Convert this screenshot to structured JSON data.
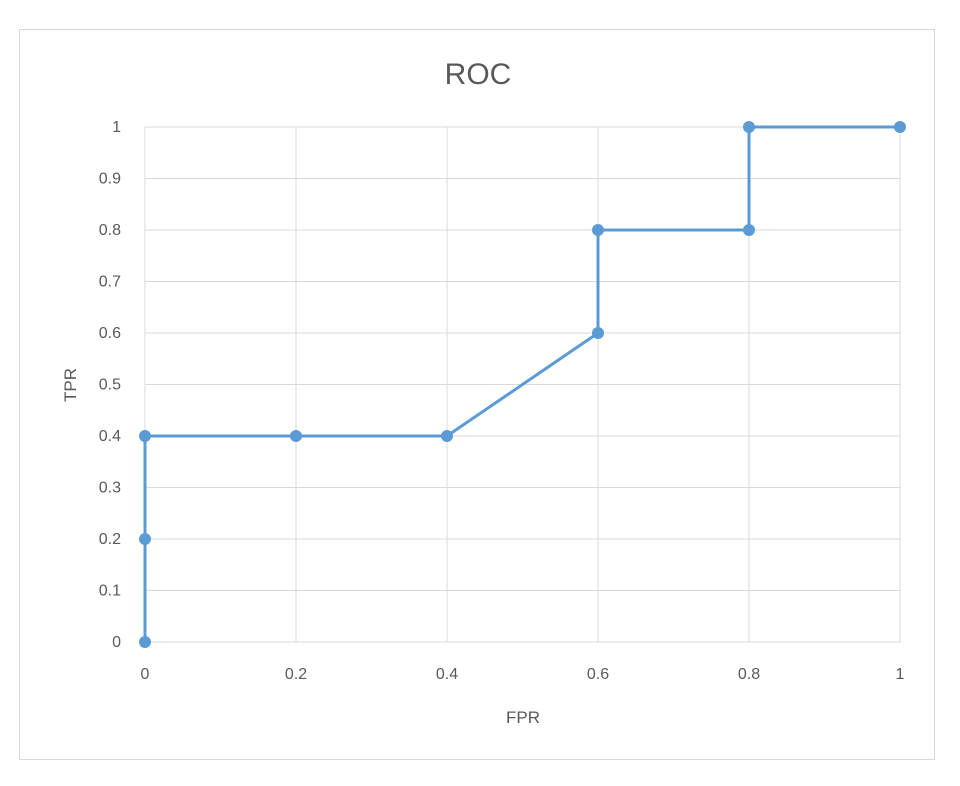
{
  "chart_data": {
    "type": "scatter",
    "title": "ROC",
    "xlabel": "FPR",
    "ylabel": "TPR",
    "xlim": [
      0,
      1
    ],
    "ylim": [
      0,
      1
    ],
    "xticks": [
      "0",
      "0.2",
      "0.4",
      "0.6",
      "0.8",
      "1"
    ],
    "yticks": [
      "0",
      "0.1",
      "0.2",
      "0.3",
      "0.4",
      "0.5",
      "0.6",
      "0.7",
      "0.8",
      "0.9",
      "1"
    ],
    "grid": true,
    "legend": "none",
    "series": [
      {
        "color": "#5b9bd5",
        "x": [
          0,
          0,
          0,
          0.2,
          0.4,
          0.6,
          0.6,
          0.8,
          0.8,
          1
        ],
        "y": [
          0,
          0.2,
          0.4,
          0.4,
          0.4,
          0.6,
          0.8,
          0.8,
          1,
          1
        ]
      }
    ]
  }
}
